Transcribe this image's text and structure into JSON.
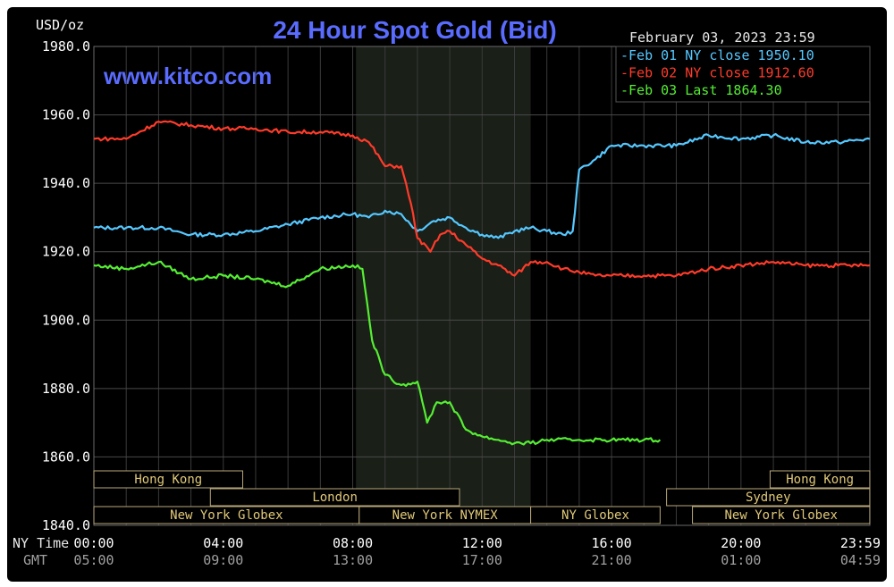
{
  "chart_data": {
    "type": "line",
    "title": "24 Hour Spot Gold (Bid)",
    "watermark": "www.kitco.com",
    "date_label": "February 03, 2023 23:59",
    "unit_label": "USD/oz",
    "ylim": [
      1840,
      1980
    ],
    "y_ticks": [
      "1980.0",
      "1960.0",
      "1940.0",
      "1920.0",
      "1900.0",
      "1880.0",
      "1860.0",
      "1840.0"
    ],
    "x_axis_row_label": "NY Time",
    "gmt_row_label": "GMT",
    "x_ticks": [
      {
        "hour": 0,
        "ny": "00:00",
        "gmt": "05:00"
      },
      {
        "hour": 4,
        "ny": "04:00",
        "gmt": "09:00"
      },
      {
        "hour": 8,
        "ny": "08:00",
        "gmt": "13:00"
      },
      {
        "hour": 12,
        "ny": "12:00",
        "gmt": "17:00"
      },
      {
        "hour": 16,
        "ny": "16:00",
        "gmt": "21:00"
      },
      {
        "hour": 20,
        "ny": "20:00",
        "gmt": "01:00"
      },
      {
        "hour": 23.983,
        "ny": "23:59",
        "gmt": "04:59"
      }
    ],
    "shaded_session": [
      8.1,
      13.5
    ],
    "legend": [
      "-Feb 01 NY close 1950.10",
      "-Feb 02 NY close 1912.60",
      "-Feb 03 Last 1864.30"
    ],
    "sessions": [
      {
        "label": "Hong Kong",
        "start": 0,
        "end": 4.6,
        "row": 0
      },
      {
        "label": "Hong Kong",
        "start": 20.9,
        "end": 23.98,
        "row": 0
      },
      {
        "label": "London",
        "start": 3.6,
        "end": 11.3,
        "row": 1
      },
      {
        "label": "Sydney",
        "start": 17.7,
        "end": 23.98,
        "row": 1
      },
      {
        "label": "New York Globex",
        "start": 0,
        "end": 8.2,
        "row": 2
      },
      {
        "label": "New York NYMEX",
        "start": 8.2,
        "end": 13.5,
        "row": 2
      },
      {
        "label": "NY Globex",
        "start": 13.5,
        "end": 17.5,
        "row": 2
      },
      {
        "label": "New York Globex",
        "start": 18.5,
        "end": 23.98,
        "row": 2
      }
    ],
    "series": [
      {
        "name": "Feb 01",
        "color": "#55c8ff",
        "x": [
          0,
          1,
          2,
          3,
          4,
          5,
          6,
          7,
          8,
          8.5,
          9,
          9.5,
          10,
          10.5,
          11,
          11.5,
          12,
          12.5,
          13,
          13.5,
          14,
          14.5,
          14.8,
          15,
          15.5,
          16,
          17,
          18,
          19,
          20,
          21,
          22,
          23,
          23.98
        ],
        "y": [
          1927,
          1927,
          1927,
          1925,
          1925,
          1926,
          1928,
          1930,
          1931,
          1930,
          1932,
          1931,
          1926,
          1929,
          1930,
          1927,
          1925,
          1924,
          1926,
          1927,
          1926,
          1925,
          1926,
          1944,
          1947,
          1951,
          1951,
          1951,
          1954,
          1953,
          1954,
          1952,
          1952,
          1953
        ]
      },
      {
        "name": "Feb 02",
        "color": "#ff3b2a",
        "x": [
          0,
          1,
          2,
          3,
          4,
          5,
          6,
          7,
          8,
          8.5,
          9,
          9.5,
          9.8,
          10,
          10.4,
          10.7,
          11,
          11.5,
          12,
          12.5,
          13,
          13.5,
          14,
          14.5,
          15,
          15.5,
          16,
          17,
          18,
          19,
          20,
          21,
          22,
          23,
          23.98
        ],
        "y": [
          1953,
          1953,
          1958,
          1957,
          1956,
          1956,
          1955,
          1955,
          1954,
          1952,
          1945,
          1945,
          1934,
          1924,
          1920,
          1925,
          1926,
          1922,
          1918,
          1916,
          1913,
          1917,
          1917,
          1915,
          1914,
          1913,
          1913,
          1913,
          1913,
          1915,
          1916,
          1917,
          1916,
          1916,
          1916
        ]
      },
      {
        "name": "Feb 03",
        "color": "#55ee33",
        "x": [
          0,
          1,
          2,
          3,
          4,
          5,
          6,
          7,
          8,
          8.3,
          8.6,
          9,
          9.5,
          10,
          10.3,
          10.6,
          11,
          11.5,
          12,
          12.5,
          13,
          13.5,
          14,
          15,
          16,
          17,
          17.5
        ],
        "y": [
          1916,
          1915,
          1917,
          1912,
          1913,
          1912,
          1910,
          1915,
          1916,
          1915,
          1894,
          1884,
          1881,
          1882,
          1870,
          1876,
          1876,
          1868,
          1866,
          1865,
          1864,
          1864,
          1865,
          1865,
          1865,
          1865,
          1865
        ]
      }
    ]
  }
}
